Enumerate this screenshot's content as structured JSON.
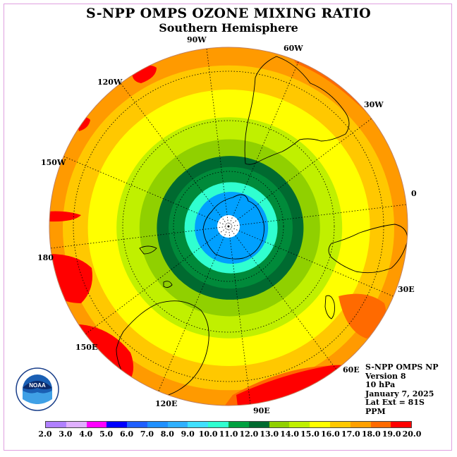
{
  "header": {
    "title": "S-NPP OMPS OZONE MIXING RATIO",
    "subtitle": "Southern Hemisphere"
  },
  "map": {
    "projection": "south-polar-stereographic",
    "lat_extent_text": "Lat Ext = 81S",
    "meridian_labels": [
      "90W",
      "60W",
      "30W",
      "0",
      "30E",
      "60E",
      "90E",
      "120E",
      "150E",
      "180",
      "150W",
      "120W"
    ],
    "pole_fill_color": "#ffffff",
    "ring_colors": [
      "#00a0ff",
      "#30ffd0",
      "#008a3a",
      "#006a30",
      "#90d000",
      "#c0f000",
      "#ffff00",
      "#ffc800",
      "#ff9a00",
      "#ff6a00",
      "#ff0000"
    ]
  },
  "legend_box": {
    "lines": [
      "S-NPP OMPS NP",
      "Version 8",
      "10 hPa",
      "January 7, 2025",
      "Lat Ext = 81S",
      "PPM"
    ]
  },
  "colorbar": {
    "tick_labels": [
      "2.0",
      "3.0",
      "4.0",
      "5.0",
      "6.0",
      "7.0",
      "8.0",
      "9.0",
      "10.0",
      "11.0",
      "12.0",
      "13.0",
      "14.0",
      "15.0",
      "16.0",
      "17.0",
      "18.0",
      "19.0",
      "20.0"
    ],
    "colors": [
      "#b080ff",
      "#e0b0ff",
      "#ff00ff",
      "#0000ff",
      "#2060ff",
      "#2090ff",
      "#30b0ff",
      "#40e0ff",
      "#30ffd0",
      "#00a040",
      "#006a30",
      "#90d000",
      "#c0f000",
      "#ffff00",
      "#ffc800",
      "#ffa000",
      "#ff6a00",
      "#ff0000",
      "#8b5a3c"
    ]
  },
  "logo": {
    "text": "NOAA",
    "ring_text": "NATIONAL OCEANIC AND ATMOSPHERIC ADMINISTRATION · U.S. DEPARTMENT OF COMMERCE"
  }
}
